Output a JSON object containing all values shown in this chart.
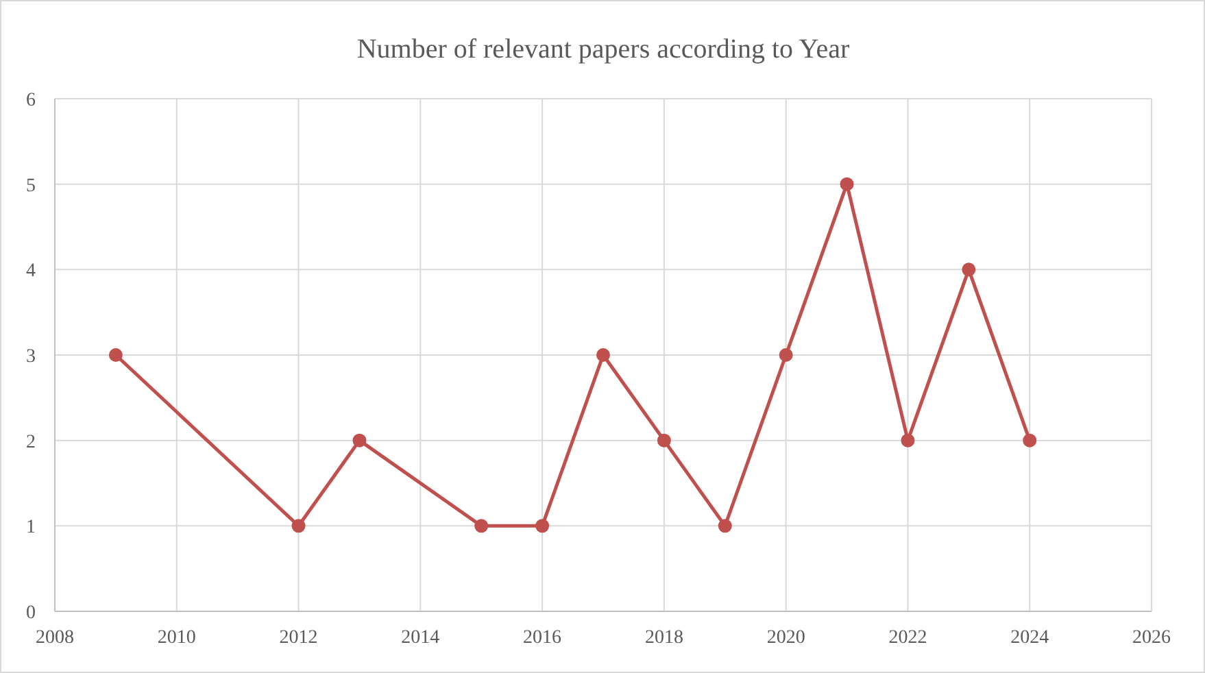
{
  "chart_data": {
    "type": "line",
    "title": "Number of relevant papers according to Year",
    "x": [
      2009,
      2012,
      2013,
      2015,
      2016,
      2017,
      2018,
      2019,
      2020,
      2021,
      2022,
      2023,
      2024
    ],
    "series": [
      {
        "color": "#c0504d",
        "values": [
          3,
          1,
          2,
          1,
          1,
          3,
          2,
          1,
          3,
          5,
          2,
          4,
          2
        ]
      }
    ],
    "xlim": [
      2008,
      2026
    ],
    "xticks": [
      2008,
      2010,
      2012,
      2014,
      2016,
      2018,
      2020,
      2022,
      2024,
      2026
    ],
    "ylim": [
      0,
      6
    ],
    "yticks": [
      0,
      1,
      2,
      3,
      4,
      5,
      6
    ],
    "grid": true,
    "marker": "circle",
    "line_style": "solid"
  }
}
